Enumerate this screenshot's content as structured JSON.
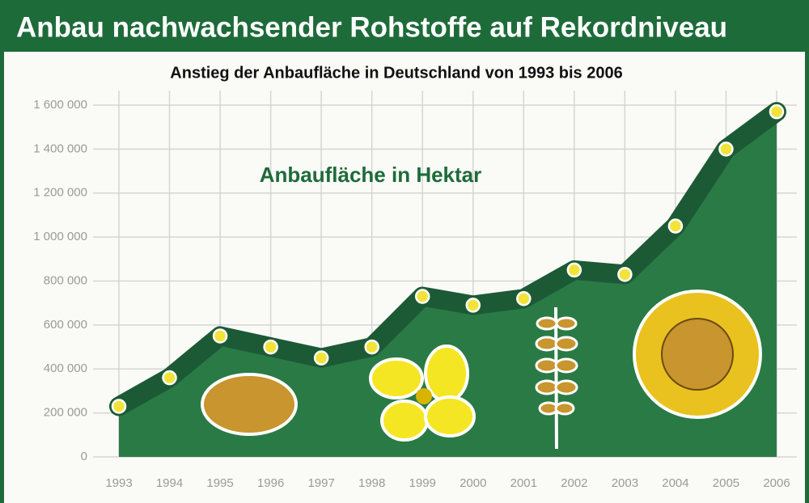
{
  "chart_data": {
    "type": "area",
    "title": "Anbau nachwachsender Rohstoffe auf Rekordniveau",
    "subtitle": "Anstieg der Anbaufläche in Deutschland von 1993 bis 2006",
    "annotation": "Anbaufläche in Hektar",
    "categories": [
      "1993",
      "1994",
      "1995",
      "1996",
      "1997",
      "1998",
      "1999",
      "2000",
      "2001",
      "2002",
      "2003",
      "2004",
      "2005",
      "2006"
    ],
    "values": [
      230000,
      360000,
      550000,
      500000,
      450000,
      500000,
      730000,
      690000,
      720000,
      850000,
      830000,
      1050000,
      1400000,
      1570000
    ],
    "line_color": "#1c5a36",
    "fill_color": "#2a7a45",
    "marker_color": "#f2e33a",
    "ylim": [
      0,
      1600000
    ],
    "yticks": [
      0,
      {
        "value": 200000,
        "label": "200 000"
      },
      {
        "value": 400000,
        "label": "400 000"
      },
      {
        "value": 600000,
        "label": "600 000"
      },
      {
        "value": 800000,
        "label": "800 000"
      },
      {
        "value": 1000000,
        "label": "1 000 000"
      },
      {
        "value": 1200000,
        "label": "1 200 000"
      },
      {
        "value": 1400000,
        "label": "1 400 000"
      },
      {
        "value": 1600000,
        "label": "1 600 000"
      }
    ],
    "grid": true
  }
}
